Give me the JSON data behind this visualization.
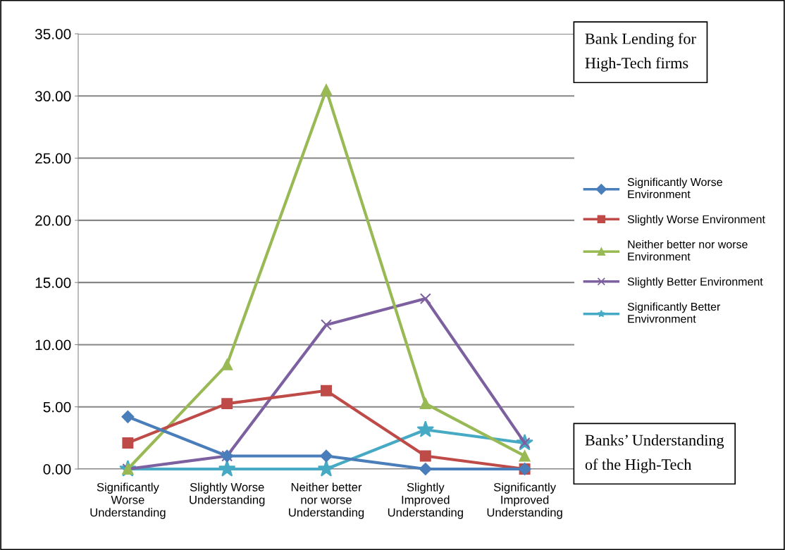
{
  "chart_data": {
    "type": "line",
    "categories": [
      "Significantly Worse Understanding",
      "Slightly Worse Understanding",
      "Neither better nor worse Understanding",
      "Slightly Improved Understanding",
      "Significantly Improved Understanding"
    ],
    "series": [
      {
        "name": "Significantly Worse Environment",
        "color": "#4a7ebb",
        "marker": "diamond",
        "values": [
          4.2,
          1.05,
          1.05,
          0,
          0
        ]
      },
      {
        "name": "Slightly Worse Environment",
        "color": "#be4b48",
        "marker": "square",
        "values": [
          2.1,
          5.26,
          6.3,
          1.05,
          0
        ]
      },
      {
        "name": "Neither better nor worse Environment",
        "color": "#98b954",
        "marker": "triangle",
        "values": [
          0,
          8.4,
          30.5,
          5.26,
          1.05
        ]
      },
      {
        "name": "Slightly Better Environment",
        "color": "#7d60a0",
        "marker": "cross",
        "values": [
          0,
          1.05,
          11.6,
          13.7,
          2.1
        ]
      },
      {
        "name": "Significantly Better Envivronment",
        "color": "#46aac5",
        "marker": "star",
        "values": [
          0,
          0,
          0,
          3.16,
          2.1
        ]
      }
    ],
    "ylim": [
      0,
      35
    ],
    "yticks": [
      {
        "value": 0,
        "label": "0.00"
      },
      {
        "value": 5,
        "label": "5.00"
      },
      {
        "value": 10,
        "label": "10.00"
      },
      {
        "value": 15,
        "label": "15.00"
      },
      {
        "value": 20,
        "label": "20.00"
      },
      {
        "value": 25,
        "label": "25.00"
      },
      {
        "value": 30,
        "label": "30.00"
      },
      {
        "value": 35,
        "label": "35.00"
      }
    ],
    "grid": "y",
    "legend": "right",
    "line_style": "solid",
    "annotations": [
      "Bank Lending for High-Tech firms",
      "Banks’ Understanding of the High-Tech"
    ]
  }
}
